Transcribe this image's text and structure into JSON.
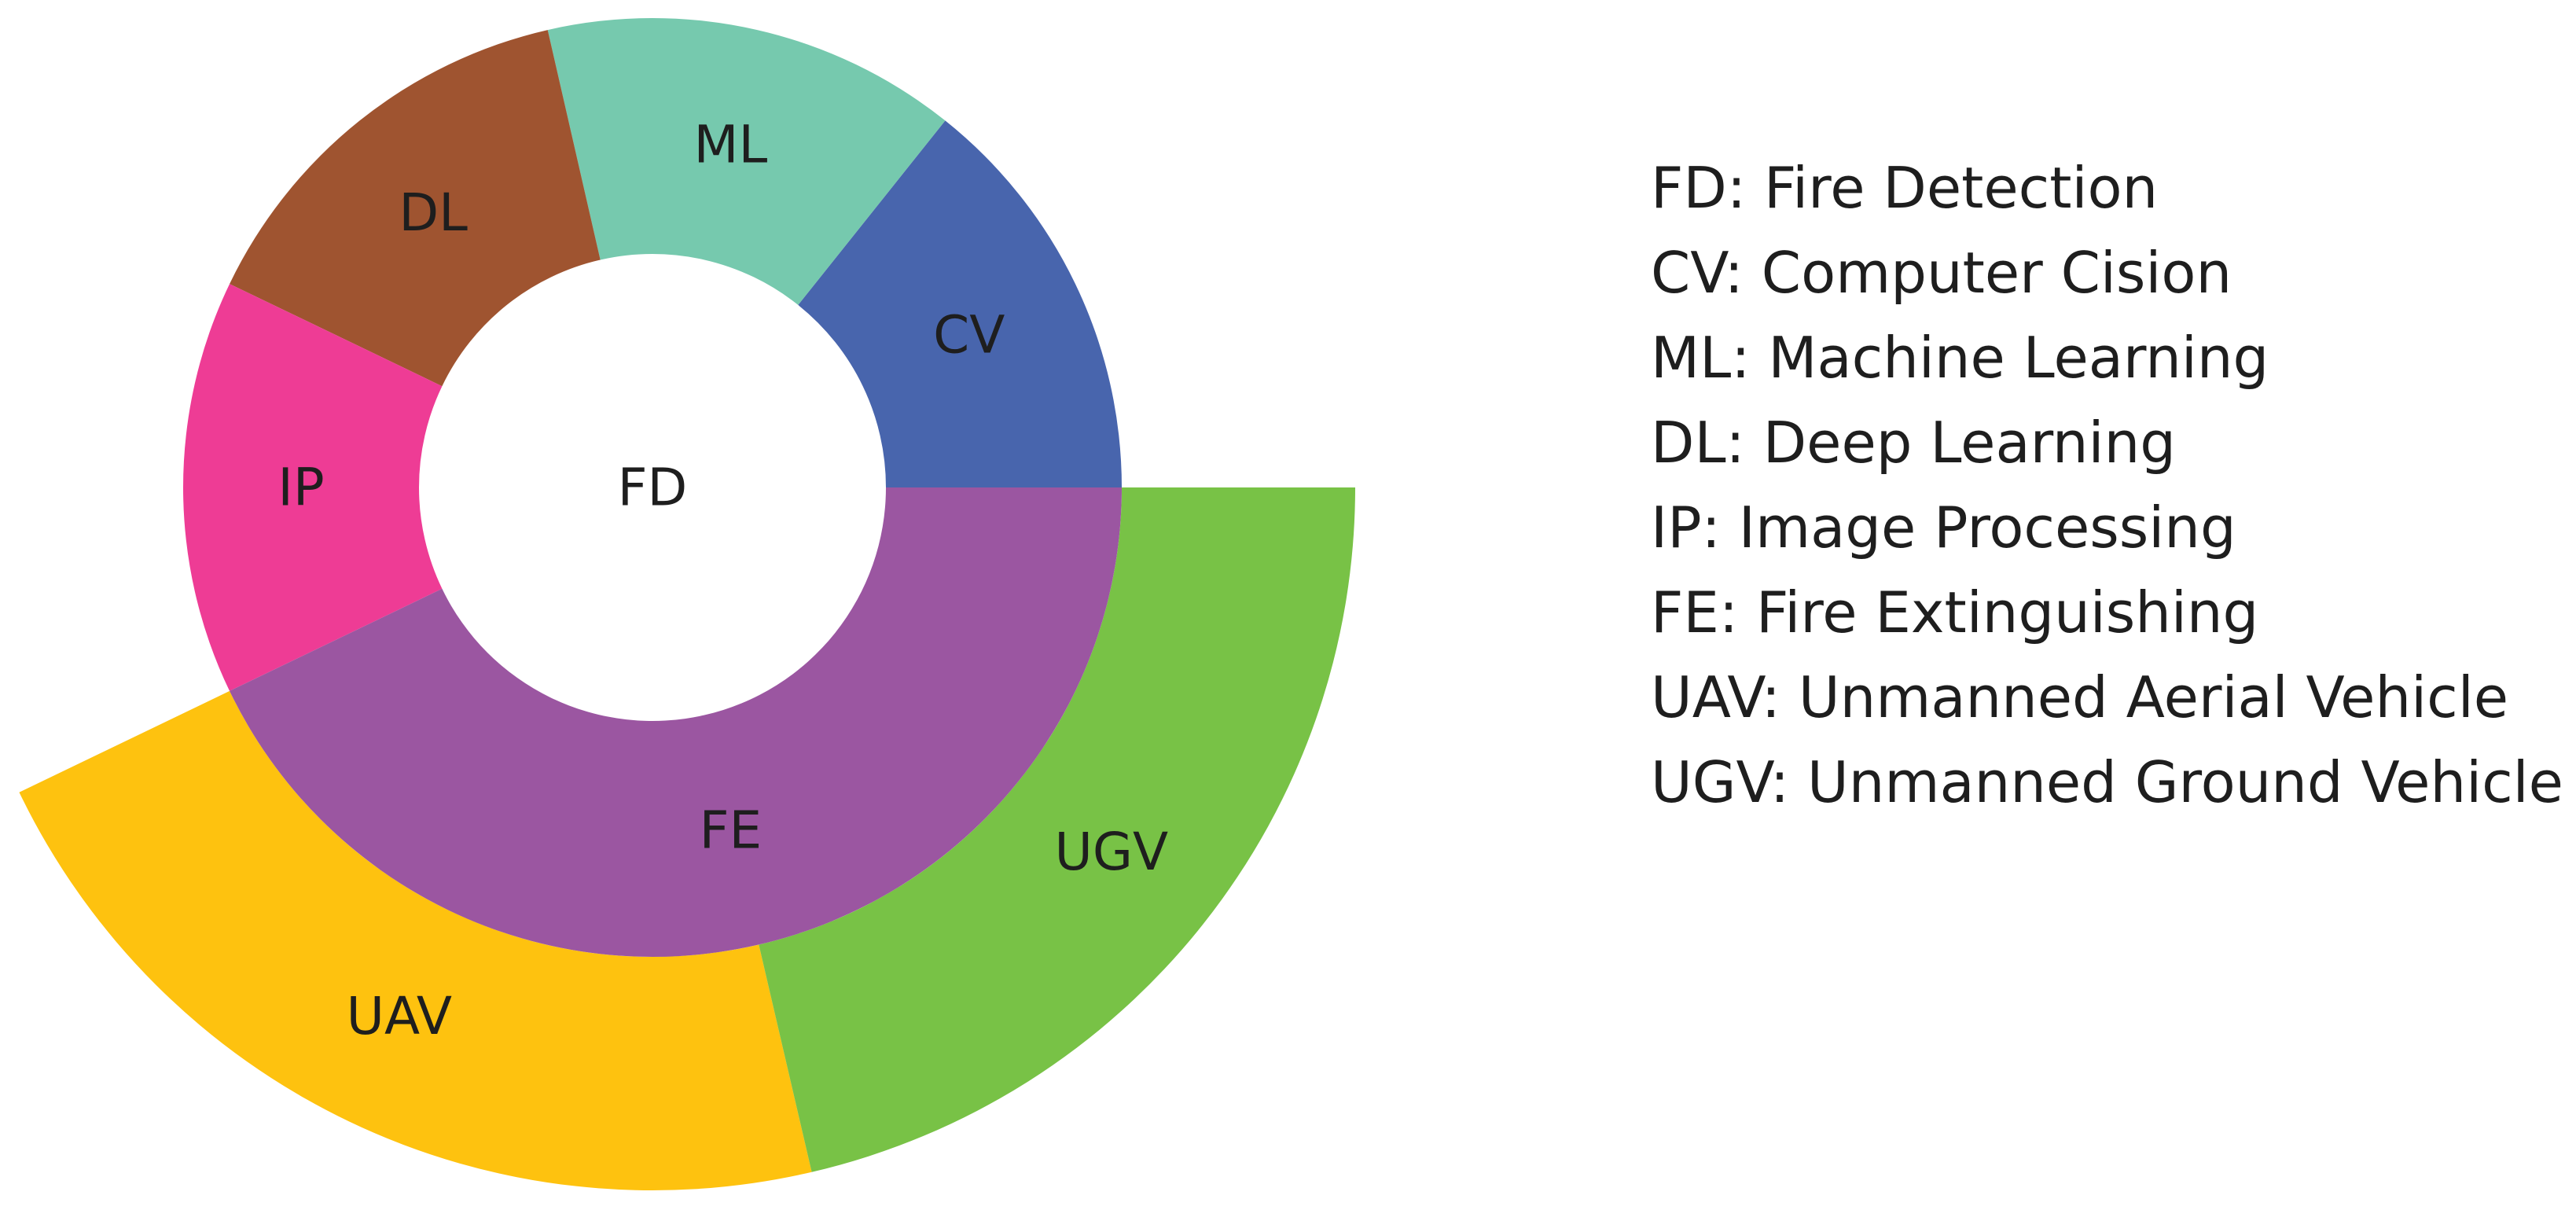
{
  "diagram": {
    "center_label": "FD",
    "inner_ring": [
      {
        "label": "CV",
        "start_deg": 0,
        "end_deg": 51.4,
        "color": "#4865ad"
      },
      {
        "label": "ML",
        "start_deg": 51.4,
        "end_deg": 102.9,
        "color": "#76c9ae"
      },
      {
        "label": "DL",
        "start_deg": 102.9,
        "end_deg": 154.3,
        "color": "#9f5430"
      },
      {
        "label": "IP",
        "start_deg": 154.3,
        "end_deg": 205.7,
        "color": "#ee3c95"
      },
      {
        "label": "FE",
        "start_deg": 205.7,
        "end_deg": 360,
        "color": "#9b56a1"
      }
    ],
    "outer_ring": [
      {
        "label": "UAV",
        "start_deg": 205.7,
        "end_deg": 283.1,
        "color": "#fec20f"
      },
      {
        "label": "UGV",
        "start_deg": 283.1,
        "end_deg": 360,
        "color": "#78c246"
      }
    ]
  },
  "legend": {
    "items": [
      "FD: Fire Detection",
      "CV: Computer Cision",
      "ML: Machine Learning",
      "DL: Deep Learning",
      "IP: Image Processing",
      "FE: Fire Extinguishing",
      "UAV: Unmanned Aerial Vehicle",
      "UGV: Unmanned Ground Vehicle"
    ]
  }
}
